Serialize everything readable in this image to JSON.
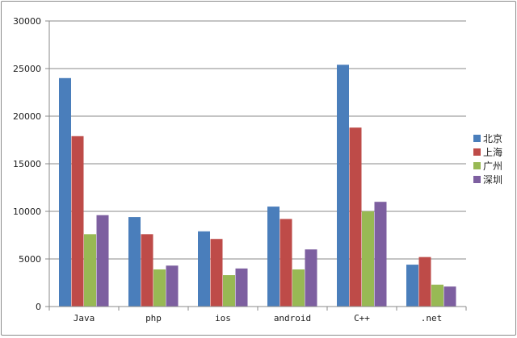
{
  "chart_data": {
    "type": "bar",
    "categories": [
      "Java",
      "php",
      "ios",
      "android",
      "C++",
      ".net"
    ],
    "series": [
      {
        "name": "北京",
        "color": "#4a7ebb",
        "values": [
          24000,
          9400,
          7900,
          10500,
          25400,
          4400
        ]
      },
      {
        "name": "上海",
        "color": "#be4b48",
        "values": [
          17900,
          7600,
          7100,
          9200,
          18800,
          5200
        ]
      },
      {
        "name": "广州",
        "color": "#98b954",
        "values": [
          7600,
          3900,
          3300,
          3900,
          10000,
          2300
        ]
      },
      {
        "name": "深圳",
        "color": "#7d5fa0",
        "values": [
          9600,
          4300,
          4000,
          6000,
          11000,
          2100
        ]
      }
    ],
    "ylim": [
      0,
      30000
    ],
    "yticks": [
      0,
      5000,
      10000,
      15000,
      20000,
      25000,
      30000
    ],
    "grid": true,
    "legend_position": "right",
    "title": "",
    "xlabel": "",
    "ylabel": ""
  }
}
